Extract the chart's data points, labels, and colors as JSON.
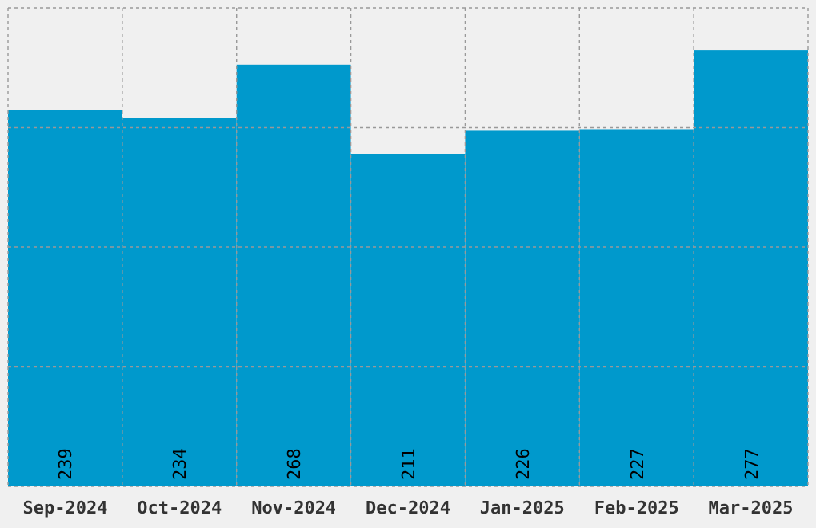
{
  "chart_data": {
    "type": "bar",
    "categories": [
      "Sep-2024",
      "Oct-2024",
      "Nov-2024",
      "Dec-2024",
      "Jan-2025",
      "Feb-2025",
      "Mar-2025"
    ],
    "values": [
      239,
      234,
      268,
      211,
      226,
      227,
      277
    ],
    "color": "#0099cc",
    "ylim": [
      0,
      304
    ],
    "yticks": [
      {
        "value": 0,
        "label": null
      },
      {
        "value": 76,
        "label": null
      },
      {
        "value": 152,
        "label": null
      },
      {
        "value": 228,
        "label": null
      },
      {
        "value": 304,
        "label": null
      }
    ],
    "tick_labels": "x",
    "grid": true,
    "data_labels": true
  }
}
